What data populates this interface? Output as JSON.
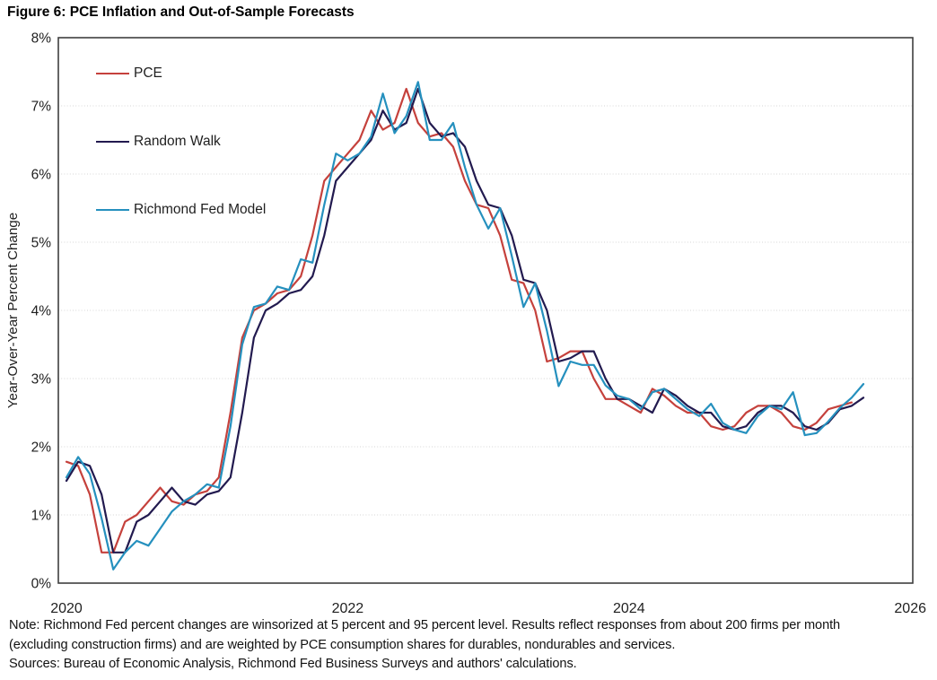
{
  "figure": {
    "title": "Figure 6: PCE Inflation and Out-of-Sample Forecasts",
    "note_line1": "Note: Richmond Fed percent changes are winsorized at 5 percent and 95 percent level. Results reflect responses from about 200 firms per month",
    "note_line2": "(excluding construction firms) and are weighted by PCE consumption shares for durables, nondurables and services.",
    "sources": "Sources: Bureau of Economic Analysis, Richmond Fed Business Surveys and authors' calculations."
  },
  "chart_data": {
    "type": "line",
    "title": "Figure 6: PCE Inflation and Out-of-Sample Forecasts",
    "xlabel": "",
    "ylabel": "Year-Over-Year Percent Change",
    "xlim": [
      2020,
      2026
    ],
    "ylim": [
      0,
      8
    ],
    "y_ticks": [
      0,
      1,
      2,
      3,
      4,
      5,
      6,
      7,
      8
    ],
    "y_tick_suffix": "%",
    "x_ticks": [
      2020,
      2022,
      2024,
      2026
    ],
    "grid": "horizontal, light dotted",
    "legend_position": "inside top-left",
    "x_unit": "monthly, starting 2020-01",
    "frame_color": "#3F3F3F",
    "grid_color": "#D6D6D6",
    "series": [
      {
        "name": "PCE",
        "color": "#C5413C",
        "start": "2020-01",
        "values": [
          1.78,
          1.72,
          1.3,
          0.45,
          0.45,
          0.9,
          1.0,
          1.2,
          1.4,
          1.2,
          1.15,
          1.3,
          1.35,
          1.55,
          2.5,
          3.6,
          4.0,
          4.1,
          4.25,
          4.3,
          4.5,
          5.1,
          5.9,
          6.1,
          6.3,
          6.5,
          6.93,
          6.65,
          6.75,
          7.25,
          6.75,
          6.55,
          6.6,
          6.4,
          5.9,
          5.55,
          5.5,
          5.1,
          4.45,
          4.4,
          4.0,
          3.25,
          3.3,
          3.4,
          3.4,
          3.0,
          2.7,
          2.7,
          2.6,
          2.5,
          2.85,
          2.75,
          2.6,
          2.5,
          2.5,
          2.3,
          2.25,
          2.3,
          2.5,
          2.6,
          2.6,
          2.5,
          2.3,
          2.25,
          2.35,
          2.55,
          2.6,
          2.65
        ]
      },
      {
        "name": "Random Walk",
        "color": "#221A4F",
        "start": "2020-01",
        "values": [
          1.5,
          1.78,
          1.72,
          1.3,
          0.45,
          0.45,
          0.9,
          1.0,
          1.2,
          1.4,
          1.2,
          1.15,
          1.3,
          1.35,
          1.55,
          2.5,
          3.6,
          4.0,
          4.1,
          4.25,
          4.3,
          4.5,
          5.1,
          5.9,
          6.1,
          6.3,
          6.5,
          6.93,
          6.65,
          6.75,
          7.25,
          6.75,
          6.55,
          6.6,
          6.4,
          5.9,
          5.55,
          5.5,
          5.1,
          4.45,
          4.4,
          4.0,
          3.25,
          3.3,
          3.4,
          3.4,
          3.0,
          2.7,
          2.7,
          2.6,
          2.5,
          2.85,
          2.75,
          2.6,
          2.5,
          2.5,
          2.3,
          2.25,
          2.3,
          2.5,
          2.6,
          2.6,
          2.5,
          2.3,
          2.25,
          2.35,
          2.55,
          2.6,
          2.72
        ]
      },
      {
        "name": "Richmond Fed Model",
        "color": "#2590BE",
        "start": "2020-01",
        "values": [
          1.55,
          1.85,
          1.6,
          0.95,
          0.2,
          0.45,
          0.62,
          0.55,
          0.8,
          1.05,
          1.2,
          1.3,
          1.45,
          1.4,
          2.3,
          3.5,
          4.05,
          4.1,
          4.35,
          4.3,
          4.75,
          4.7,
          5.55,
          6.3,
          6.2,
          6.3,
          6.55,
          7.18,
          6.6,
          6.85,
          7.35,
          6.5,
          6.5,
          6.75,
          6.1,
          5.55,
          5.2,
          5.5,
          4.8,
          4.05,
          4.4,
          3.7,
          2.89,
          3.25,
          3.2,
          3.2,
          2.9,
          2.75,
          2.7,
          2.55,
          2.8,
          2.85,
          2.7,
          2.55,
          2.45,
          2.63,
          2.35,
          2.25,
          2.2,
          2.45,
          2.6,
          2.55,
          2.8,
          2.17,
          2.2,
          2.37,
          2.57,
          2.72,
          2.92
        ]
      }
    ]
  }
}
